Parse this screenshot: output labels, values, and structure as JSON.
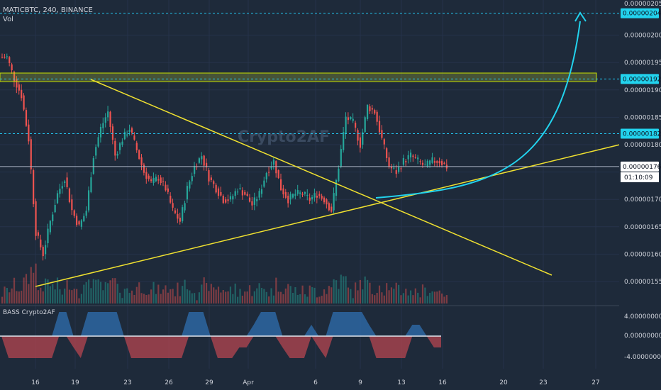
{
  "header": {
    "symbol_line": "MATICBTC, 240, BINANCE",
    "volume_label": "Vol"
  },
  "indicator": {
    "label": "BASS Crypto2AF",
    "ticks": [
      "4.00000000",
      "0.00000000",
      "-4.00000000"
    ]
  },
  "watermark": "Crypto2AF",
  "price_axis": {
    "partial_top": "0.00000205",
    "ticks": [
      "0.00000200",
      "0.00000195",
      "0.00000190",
      "0.00000185",
      "0.00000180",
      "0.00000170",
      "0.00000165",
      "0.00000160",
      "0.00000155"
    ],
    "tags": [
      {
        "text": "0.00000204",
        "kind": "target"
      },
      {
        "text": "0.00000192",
        "kind": "target"
      },
      {
        "text": "0.00000182",
        "kind": "target"
      },
      {
        "text": "0.00000176",
        "kind": "current"
      }
    ],
    "countdown": "01:10:09"
  },
  "time_axis": {
    "labels": [
      "16",
      "19",
      "23",
      "26",
      "29",
      "Apr",
      "6",
      "9",
      "13",
      "16",
      "20",
      "23",
      "27"
    ]
  },
  "chart_data": {
    "type": "candlestick",
    "title": "MATICBTC, 240, BINANCE",
    "y_range": [
      1.53e-06,
      2.07e-06
    ],
    "key_levels": [
      2.04e-06,
      1.92e-06,
      1.82e-06,
      1.76e-06
    ],
    "resistance_zone": [
      1.9075e-06,
      1.9225e-06
    ],
    "close_series": [
      1.96e-06,
      1.92e-06,
      1.89e-06,
      1.81e-06,
      1.64e-06,
      1.6e-06,
      1.66e-06,
      1.71e-06,
      1.74e-06,
      1.68e-06,
      1.65e-06,
      1.68e-06,
      1.78e-06,
      1.83e-06,
      1.86e-06,
      1.78e-06,
      1.81e-06,
      1.83e-06,
      1.79e-06,
      1.75e-06,
      1.73e-06,
      1.74e-06,
      1.72e-06,
      1.68e-06,
      1.66e-06,
      1.72e-06,
      1.76e-06,
      1.78e-06,
      1.74e-06,
      1.72e-06,
      1.7e-06,
      1.7e-06,
      1.72e-06,
      1.71e-06,
      1.69e-06,
      1.71e-06,
      1.75e-06,
      1.77e-06,
      1.72e-06,
      1.7e-06,
      1.71e-06,
      1.71e-06,
      1.7e-06,
      1.71e-06,
      1.7e-06,
      1.68e-06,
      1.76e-06,
      1.85e-06,
      1.84e-06,
      1.8e-06,
      1.87e-06,
      1.86e-06,
      1.81e-06,
      1.76e-06,
      1.75e-06,
      1.77e-06,
      1.78e-06,
      1.77e-06,
      1.76e-06,
      1.77e-06,
      1.77e-06,
      1.76e-06
    ],
    "colors": {
      "up": "#26a69a",
      "down": "#ef5350",
      "trendline": "#f0e130",
      "projection": "#22d3ee"
    }
  }
}
